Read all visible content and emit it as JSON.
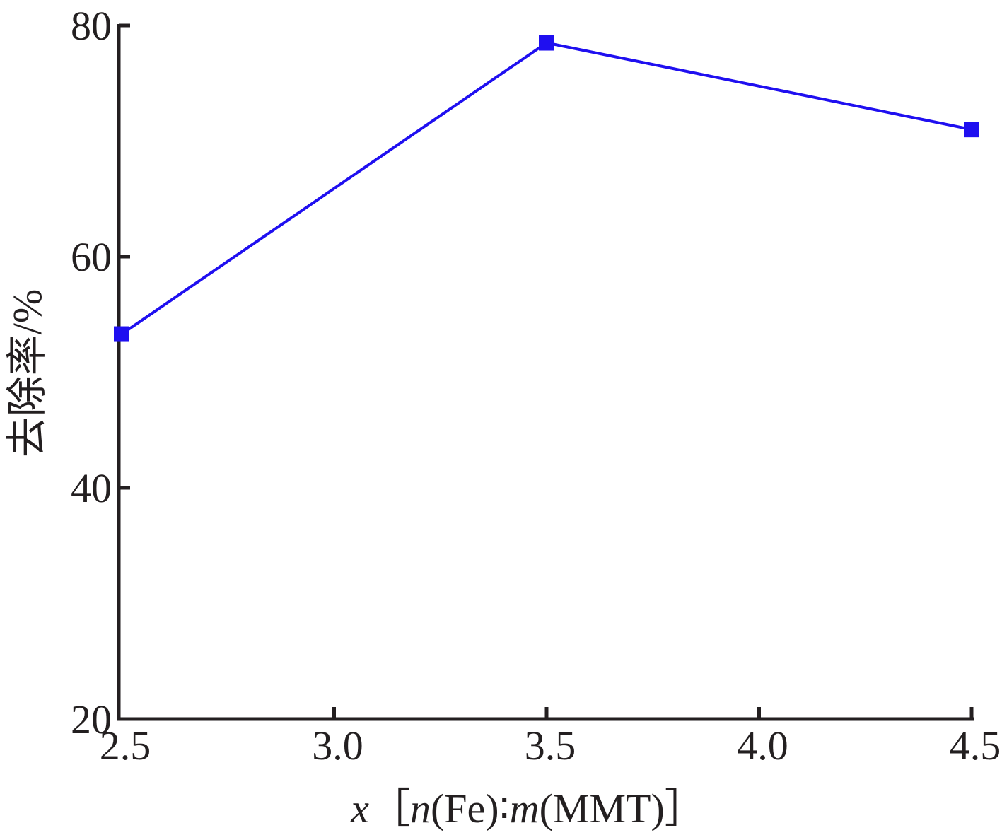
{
  "chart_data": {
    "type": "line",
    "title": "",
    "xlabel": {
      "var": "x",
      "bracket_open": "［",
      "n": "n",
      "fe": "(Fe)",
      "colon": "∶",
      "m": "m",
      "mmt": "(MMT)",
      "bracket_close": "］"
    },
    "ylabel": "去除率/%",
    "xlim": [
      2.5,
      4.5
    ],
    "ylim": [
      20,
      80
    ],
    "x_ticks": [
      "2.5",
      "3.0",
      "3.5",
      "4.0",
      "4.5"
    ],
    "y_ticks": [
      "20",
      "40",
      "60",
      "80"
    ],
    "grid": false,
    "legend": "none",
    "series": [
      {
        "color": "#1f0ff0",
        "marker": "square",
        "x": [
          2.5,
          3.5,
          4.5
        ],
        "y": [
          53.3,
          78.5,
          71.0
        ]
      }
    ]
  }
}
